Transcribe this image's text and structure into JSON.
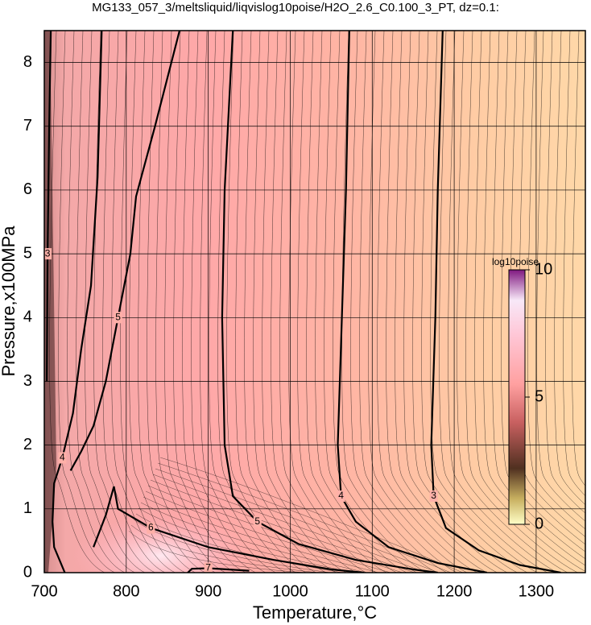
{
  "chart_data": {
    "type": "contour",
    "title": "MG133_057_3/meltsliquid/liqvislog10poise/H2O_2.6_C0.100_3_PT, dz=0.1:",
    "x_label": "Temperature,°C",
    "y_label": "Pressure,x100MPa",
    "xlim": [
      700,
      1360
    ],
    "ylim": [
      0,
      8.5
    ],
    "xticks": [
      700,
      800,
      900,
      1000,
      1100,
      1200,
      1300
    ],
    "yticks": [
      0,
      1,
      2,
      3,
      4,
      5,
      6,
      7,
      8
    ],
    "grid": true,
    "contours": [
      {
        "level": 3,
        "x": [
          1186,
          1180,
          1177,
          1172,
          1175,
          1190,
          1230,
          1280,
          1330
        ],
        "y": [
          8.5,
          6,
          4,
          2,
          1.2,
          0.7,
          0.35,
          0.12,
          0
        ]
      },
      {
        "level": 4,
        "x": [
          1072,
          1068,
          1063,
          1058,
          1062,
          1080,
          1120,
          1180,
          1240
        ],
        "y": [
          8.5,
          6,
          4,
          2,
          1.2,
          0.8,
          0.4,
          0.15,
          0
        ]
      },
      {
        "level": 5,
        "x": [
          930,
          920,
          917,
          920,
          930,
          960,
          1010,
          1080,
          1150,
          1180
        ],
        "y": [
          8.5,
          6,
          4,
          2,
          1.2,
          0.8,
          0.45,
          0.2,
          0.05,
          0
        ]
      },
      {
        "level": 5,
        "x": [
          865,
          835,
          812,
          805,
          790,
          775,
          760,
          745,
          732
        ],
        "y": [
          8.5,
          7,
          5.9,
          5,
          4,
          3,
          2.3,
          1.9,
          1.6
        ]
      },
      {
        "level": 4,
        "x": [
          770,
          765,
          757,
          745,
          735,
          722,
          712,
          710,
          712,
          725
        ],
        "y": [
          8.5,
          6.2,
          4.5,
          3.5,
          2.5,
          1.8,
          1.4,
          0.8,
          0.4,
          0
        ]
      },
      {
        "level": 6,
        "x": [
          760,
          775,
          785,
          790,
          830,
          900,
          980,
          1050,
          1090
        ],
        "y": [
          0.4,
          0.9,
          1.35,
          1.0,
          0.7,
          0.4,
          0.2,
          0.05,
          0
        ]
      },
      {
        "level": 7,
        "x": [
          875,
          880,
          900,
          950
        ],
        "y": [
          0,
          0.06,
          0.07,
          0.03
        ]
      },
      {
        "level": 3,
        "x": [
          708,
          706,
          704,
          703
        ],
        "y": [
          8.5,
          7,
          5,
          3
        ]
      }
    ],
    "colorbar": {
      "label": "log10poise",
      "lim": [
        0,
        10
      ],
      "ticks": [
        0,
        5,
        10
      ]
    }
  }
}
